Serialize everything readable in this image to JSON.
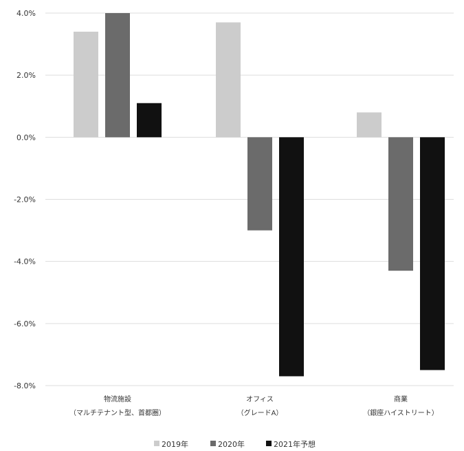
{
  "chart_data": {
    "type": "bar",
    "categories": [
      [
        "物流施設",
        "（マルチテナント型、首都圏）"
      ],
      [
        "オフィス",
        "（グレードA）"
      ],
      [
        "商業",
        "（銀座ハイストリート）"
      ]
    ],
    "series": [
      {
        "name": "2019年",
        "color": "#cccccc",
        "values": [
          3.4,
          3.7,
          0.8
        ]
      },
      {
        "name": "2020年",
        "color": "#6b6b6b",
        "values": [
          4.0,
          -3.0,
          -4.3
        ]
      },
      {
        "name": "2021年予想",
        "color": "#111111",
        "values": [
          1.1,
          -7.7,
          -7.5
        ]
      }
    ],
    "yticks": [
      "4.0%",
      "2.0%",
      "0.0%",
      "-2.0%",
      "-4.0%",
      "-6.0%",
      "-8.0%"
    ],
    "ytick_values": [
      4,
      2,
      0,
      -2,
      -4,
      -6,
      -8
    ],
    "ylim": [
      -8,
      4
    ],
    "grid": true,
    "legend": "bottom-center"
  }
}
